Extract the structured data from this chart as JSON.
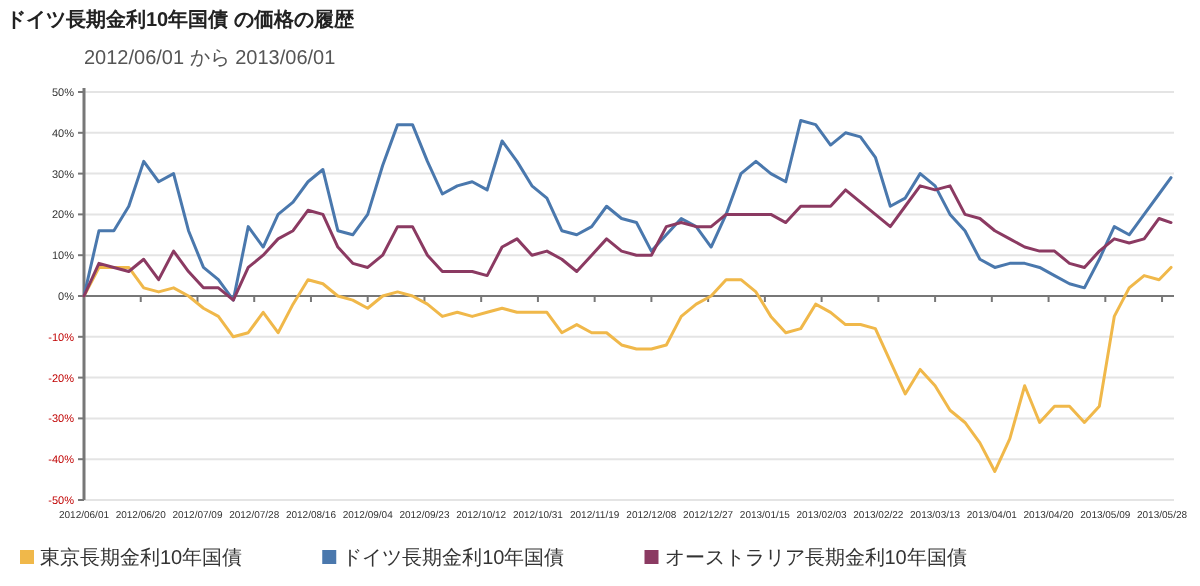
{
  "chart_data": {
    "type": "line",
    "title": "ドイツ長期金利10年国債 の価格の履歴",
    "subtitle": "2012/06/01 から 2013/06/01",
    "x": [
      "2012-06-01",
      "2012-06-06",
      "2012-06-11",
      "2012-06-16",
      "2012-06-21",
      "2012-06-26",
      "2012-07-01",
      "2012-07-06",
      "2012-07-11",
      "2012-07-16",
      "2012-07-21",
      "2012-07-26",
      "2012-07-31",
      "2012-08-05",
      "2012-08-10",
      "2012-08-15",
      "2012-08-20",
      "2012-08-25",
      "2012-08-30",
      "2012-09-04",
      "2012-09-09",
      "2012-09-14",
      "2012-09-19",
      "2012-09-24",
      "2012-09-29",
      "2012-10-04",
      "2012-10-09",
      "2012-10-14",
      "2012-10-19",
      "2012-10-24",
      "2012-10-29",
      "2012-11-03",
      "2012-11-08",
      "2012-11-13",
      "2012-11-18",
      "2012-11-23",
      "2012-11-28",
      "2012-12-03",
      "2012-12-08",
      "2012-12-13",
      "2012-12-18",
      "2012-12-23",
      "2012-12-28",
      "2013-01-02",
      "2013-01-07",
      "2013-01-12",
      "2013-01-17",
      "2013-01-22",
      "2013-01-27",
      "2013-02-01",
      "2013-02-06",
      "2013-02-11",
      "2013-02-16",
      "2013-02-21",
      "2013-02-26",
      "2013-03-03",
      "2013-03-08",
      "2013-03-13",
      "2013-03-18",
      "2013-03-23",
      "2013-03-28",
      "2013-04-02",
      "2013-04-07",
      "2013-04-12",
      "2013-04-17",
      "2013-04-22",
      "2013-04-27",
      "2013-05-02",
      "2013-05-07",
      "2013-05-12",
      "2013-05-17",
      "2013-05-22",
      "2013-05-27",
      "2013-05-31"
    ],
    "series": [
      {
        "name": "東京長期金利10年国債",
        "color": "#f0b84a",
        "values": [
          0,
          7,
          7,
          7,
          2,
          1,
          2,
          0,
          -3,
          -5,
          -10,
          -9,
          -4,
          -9,
          -2,
          4,
          3,
          0,
          -1,
          -3,
          0,
          1,
          0,
          -2,
          -5,
          -4,
          -5,
          -4,
          -3,
          -4,
          -4,
          -4,
          -9,
          -7,
          -9,
          -9,
          -12,
          -13,
          -13,
          -12,
          -5,
          -2,
          0,
          4,
          4,
          1,
          -5,
          -9,
          -8,
          -2,
          -4,
          -7,
          -7,
          -8,
          -16,
          -24,
          -18,
          -22,
          -28,
          -31,
          -36,
          -43,
          -35,
          -22,
          -31,
          -27,
          -27,
          -31,
          -27,
          -5,
          2,
          5,
          4,
          7
        ]
      },
      {
        "name": "ドイツ長期金利10年国債",
        "color": "#4a78ad",
        "values": [
          0,
          16,
          16,
          22,
          33,
          28,
          30,
          16,
          7,
          4,
          -1,
          17,
          12,
          20,
          23,
          28,
          31,
          16,
          15,
          20,
          32,
          42,
          42,
          33,
          25,
          27,
          28,
          26,
          38,
          33,
          27,
          24,
          16,
          15,
          17,
          22,
          19,
          18,
          11,
          15,
          19,
          17,
          12,
          20,
          30,
          33,
          30,
          28,
          43,
          42,
          37,
          40,
          39,
          34,
          22,
          24,
          30,
          27,
          20,
          16,
          9,
          7,
          8,
          8,
          7,
          5,
          3,
          2,
          9,
          17,
          15,
          20,
          25,
          29
        ]
      },
      {
        "name": "オーストラリア長期金利10年国債",
        "color": "#8b3a62",
        "values": [
          0,
          8,
          7,
          6,
          9,
          4,
          11,
          6,
          2,
          2,
          -1,
          7,
          10,
          14,
          16,
          21,
          20,
          12,
          8,
          7,
          10,
          17,
          17,
          10,
          6,
          6,
          6,
          5,
          12,
          14,
          10,
          11,
          9,
          6,
          10,
          14,
          11,
          10,
          10,
          17,
          18,
          17,
          17,
          20,
          20,
          20,
          20,
          18,
          22,
          22,
          22,
          26,
          23,
          20,
          17,
          22,
          27,
          26,
          27,
          20,
          19,
          16,
          14,
          12,
          11,
          11,
          8,
          7,
          11,
          14,
          13,
          14,
          19,
          18
        ]
      }
    ],
    "xlim": [
      "2012-06-01",
      "2013-06-01"
    ],
    "xticks": [
      {
        "value": "2012-06-01",
        "label": "2012/06/01"
      },
      {
        "value": "2012-06-20",
        "label": "2012/06/20"
      },
      {
        "value": "2012-07-09",
        "label": "2012/07/09"
      },
      {
        "value": "2012-07-28",
        "label": "2012/07/28"
      },
      {
        "value": "2012-08-16",
        "label": "2012/08/16"
      },
      {
        "value": "2012-09-04",
        "label": "2012/09/04"
      },
      {
        "value": "2012-09-23",
        "label": "2012/09/23"
      },
      {
        "value": "2012-10-12",
        "label": "2012/10/12"
      },
      {
        "value": "2012-10-31",
        "label": "2012/10/31"
      },
      {
        "value": "2012-11-19",
        "label": "2012/11/19"
      },
      {
        "value": "2012-12-08",
        "label": "2012/12/08"
      },
      {
        "value": "2012-12-27",
        "label": "2012/12/27"
      },
      {
        "value": "2013-01-15",
        "label": "2013/01/15"
      },
      {
        "value": "2013-02-03",
        "label": "2013/02/03"
      },
      {
        "value": "2013-02-22",
        "label": "2013/02/22"
      },
      {
        "value": "2013-03-13",
        "label": "2013/03/13"
      },
      {
        "value": "2013-04-01",
        "label": "2013/04/01"
      },
      {
        "value": "2013-04-20",
        "label": "2013/04/20"
      },
      {
        "value": "2013-05-09",
        "label": "2013/05/09"
      },
      {
        "value": "2013-05-28",
        "label": "2013/05/28"
      }
    ],
    "ylim": [
      -50,
      50
    ],
    "yticks": [
      {
        "value": 50,
        "label": "50%"
      },
      {
        "value": 40,
        "label": "40%"
      },
      {
        "value": 30,
        "label": "30%"
      },
      {
        "value": 20,
        "label": "20%"
      },
      {
        "value": 10,
        "label": "10%"
      },
      {
        "value": 0,
        "label": "0%"
      },
      {
        "value": -10,
        "label": "-10%"
      },
      {
        "value": -20,
        "label": "-20%"
      },
      {
        "value": -30,
        "label": "-30%"
      },
      {
        "value": -40,
        "label": "-40%"
      },
      {
        "value": -50,
        "label": "-50%"
      }
    ],
    "grid": "y",
    "legend": "bottom left",
    "marker": "none",
    "line_style": "solid"
  }
}
